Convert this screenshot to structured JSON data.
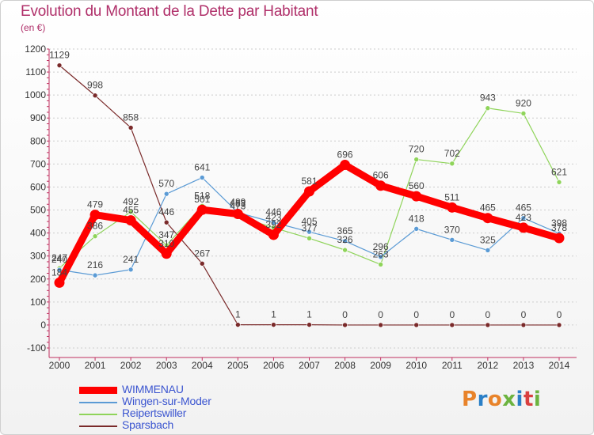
{
  "header": {
    "title": "Evolution du Montant de la Dette par Habitant",
    "unit": "(en €)"
  },
  "logo": {
    "text": "Proxiti",
    "letter_colors": [
      "#e8832a",
      "#2a7fc7",
      "#e8832a",
      "#6cb33f",
      "#2a7fc7",
      "#d94040",
      "#6cb33f"
    ]
  },
  "chart_data": {
    "type": "line",
    "title": "Evolution du Montant de la Dette par Habitant",
    "subtitle": "(en €)",
    "x": [
      "2000",
      "2001",
      "2002",
      "2003",
      "2004",
      "2005",
      "2006",
      "2007",
      "2008",
      "2009",
      "2010",
      "2011",
      "2012",
      "2013",
      "2014"
    ],
    "ylim": [
      -100,
      1200
    ],
    "yticks": [
      "-100",
      "0",
      "100",
      "200",
      "300",
      "400",
      "500",
      "600",
      "700",
      "800",
      "900",
      "1000",
      "1100",
      "1200"
    ],
    "grid": "horizontal dashed",
    "legend_position": "bottom-left",
    "series": [
      {
        "name": "WIMMENAU",
        "color": "#ff0000",
        "values": [
          184,
          479,
          455,
          310,
          501,
          483,
          392,
          581,
          696,
          606,
          560,
          511,
          465,
          423,
          378
        ],
        "labels": [
          "184",
          "479",
          "455",
          "310",
          "501",
          "483",
          "392",
          "581",
          "696",
          "606",
          "560",
          "511",
          "465",
          "423",
          "378"
        ]
      },
      {
        "name": "Wingen-sur-Moder",
        "color": "#5b9bd5",
        "values": [
          240,
          216,
          241,
          570,
          641,
          489,
          446,
          405,
          365,
          296,
          418,
          370,
          325,
          465,
          398
        ],
        "labels": [
          "240",
          "216",
          "241",
          "570",
          "641",
          "489",
          "446",
          "405",
          "365",
          "296",
          "418",
          "370",
          "325",
          "465",
          "398"
        ]
      },
      {
        "name": "Reipertswiller",
        "color": "#8fd45a",
        "values": [
          247,
          386,
          492,
          347,
          518,
          473,
          423,
          377,
          326,
          263,
          720,
          702,
          943,
          920,
          621
        ],
        "labels": [
          "247",
          "386",
          "492",
          "347",
          "518",
          "473",
          "423",
          "377",
          "326",
          "263",
          "720",
          "702",
          "943",
          "920",
          "621"
        ]
      },
      {
        "name": "Sparsbach",
        "color": "#7a2a2a",
        "values": [
          1129,
          998,
          858,
          446,
          267,
          1,
          1,
          1,
          0,
          0,
          0,
          0,
          0,
          0,
          0
        ],
        "labels": [
          "1129",
          "998",
          "858",
          "446",
          "267",
          "1",
          "1",
          "1",
          "0",
          "0",
          "0",
          "0",
          "0",
          "0",
          "0"
        ]
      }
    ]
  }
}
